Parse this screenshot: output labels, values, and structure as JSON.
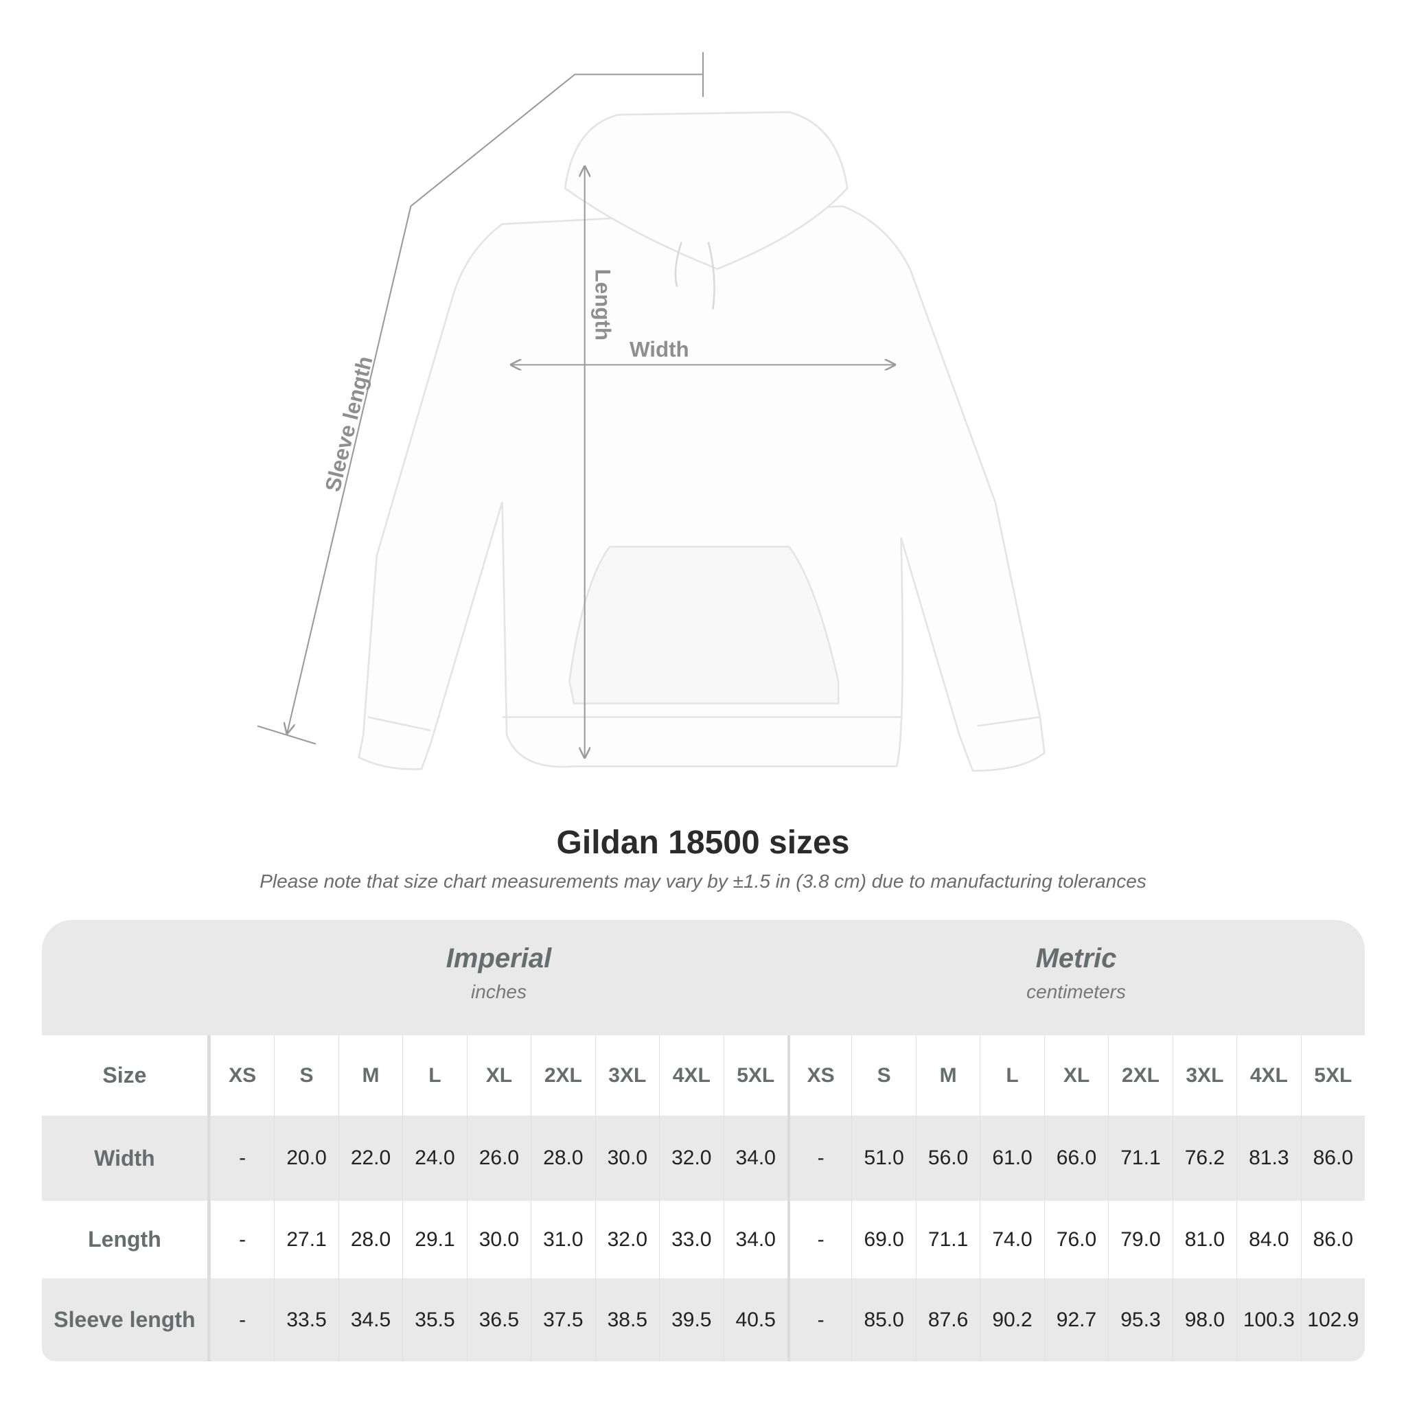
{
  "illustration": {
    "labels": {
      "sleeve": "Sleeve length",
      "length": "Length",
      "width": "Width"
    },
    "line_color": "#9a9a9a"
  },
  "title": "Gildan 18500 sizes",
  "subtitle": "Please note that size chart measurements may vary by ±1.5 in (3.8 cm) due to manufacturing tolerances",
  "table": {
    "imperial": {
      "title": "Imperial",
      "unit": "inches"
    },
    "metric": {
      "title": "Metric",
      "unit": "centimeters"
    },
    "size_label": "Size",
    "sizes": [
      "XS",
      "S",
      "M",
      "L",
      "XL",
      "2XL",
      "3XL",
      "4XL",
      "5XL"
    ],
    "rows": [
      {
        "label": "Width",
        "imperial": [
          "-",
          "20.0",
          "22.0",
          "24.0",
          "26.0",
          "28.0",
          "30.0",
          "32.0",
          "34.0"
        ],
        "metric": [
          "-",
          "51.0",
          "56.0",
          "61.0",
          "66.0",
          "71.1",
          "76.2",
          "81.3",
          "86.0"
        ]
      },
      {
        "label": "Length",
        "imperial": [
          "-",
          "27.1",
          "28.0",
          "29.1",
          "30.0",
          "31.0",
          "32.0",
          "33.0",
          "34.0"
        ],
        "metric": [
          "-",
          "69.0",
          "71.1",
          "74.0",
          "76.0",
          "79.0",
          "81.0",
          "84.0",
          "86.0"
        ]
      },
      {
        "label": "Sleeve length",
        "imperial": [
          "-",
          "33.5",
          "34.5",
          "35.5",
          "36.5",
          "37.5",
          "38.5",
          "39.5",
          "40.5"
        ],
        "metric": [
          "-",
          "85.0",
          "87.6",
          "90.2",
          "92.7",
          "95.3",
          "98.0",
          "100.3",
          "102.9"
        ]
      }
    ],
    "colors": {
      "shaded": "#e9e9e9",
      "label_text": "#666d6d",
      "value_text": "#222222"
    }
  }
}
